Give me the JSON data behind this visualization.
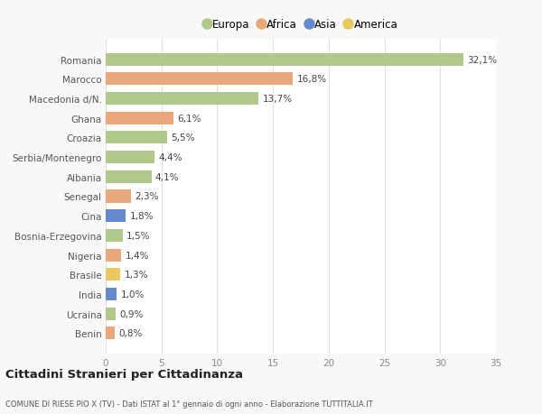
{
  "countries": [
    "Romania",
    "Marocco",
    "Macedonia d/N.",
    "Ghana",
    "Croazia",
    "Serbia/Montenegro",
    "Albania",
    "Senegal",
    "Cina",
    "Bosnia-Erzegovina",
    "Nigeria",
    "Brasile",
    "India",
    "Ucraina",
    "Benin"
  ],
  "values": [
    32.1,
    16.8,
    13.7,
    6.1,
    5.5,
    4.4,
    4.1,
    2.3,
    1.8,
    1.5,
    1.4,
    1.3,
    1.0,
    0.9,
    0.8
  ],
  "labels": [
    "32,1%",
    "16,8%",
    "13,7%",
    "6,1%",
    "5,5%",
    "4,4%",
    "4,1%",
    "2,3%",
    "1,8%",
    "1,5%",
    "1,4%",
    "1,3%",
    "1,0%",
    "0,9%",
    "0,8%"
  ],
  "continent": [
    "Europa",
    "Africa",
    "Europa",
    "Africa",
    "Europa",
    "Europa",
    "Europa",
    "Africa",
    "Asia",
    "Europa",
    "Africa",
    "America",
    "Asia",
    "Europa",
    "Africa"
  ],
  "colors": {
    "Europa": "#aec98a",
    "Africa": "#e8a87a",
    "Asia": "#6688cc",
    "America": "#e8c860"
  },
  "legend_order": [
    "Europa",
    "Africa",
    "Asia",
    "America"
  ],
  "title": "Cittadini Stranieri per Cittadinanza",
  "subtitle": "COMUNE DI RIESE PIO X (TV) - Dati ISTAT al 1° gennaio di ogni anno - Elaborazione TUTTITALIA.IT",
  "xlim": [
    0,
    35
  ],
  "xticks": [
    0,
    5,
    10,
    15,
    20,
    25,
    30,
    35
  ],
  "background_color": "#f8f8f8",
  "plot_bg_color": "#ffffff",
  "grid_color": "#e0e0e0"
}
